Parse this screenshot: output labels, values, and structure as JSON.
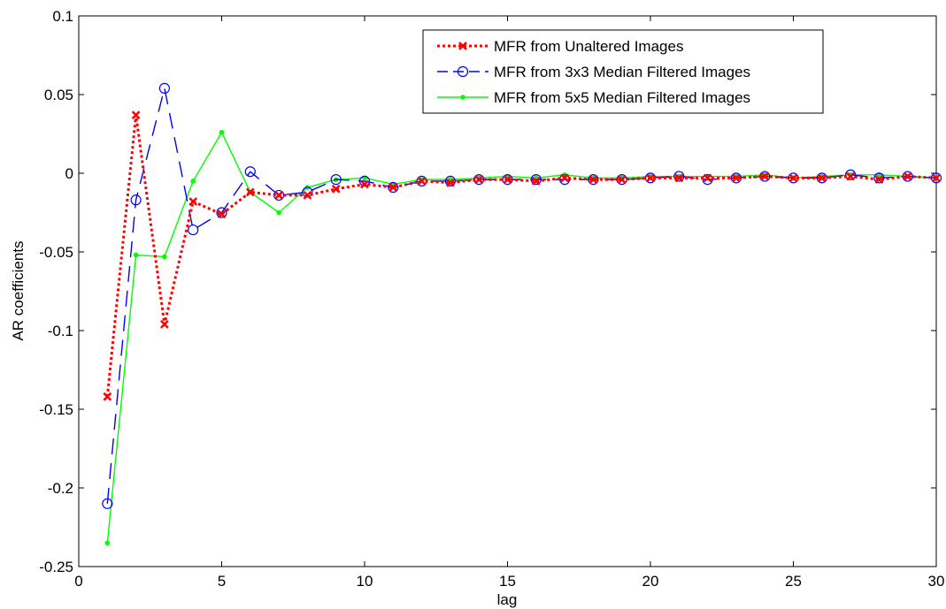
{
  "chart_data": {
    "type": "line",
    "title": "",
    "xlabel": "lag",
    "ylabel": "AR coefficients",
    "xlim": [
      0,
      30
    ],
    "ylim": [
      -0.25,
      0.1
    ],
    "xticks": [
      0,
      5,
      10,
      15,
      20,
      25,
      30
    ],
    "xtick_labels": [
      "0",
      "5",
      "10",
      "15",
      "20",
      "25",
      "30"
    ],
    "yticks": [
      0.1,
      0.05,
      0,
      -0.05,
      -0.1,
      -0.15,
      -0.2,
      -0.25
    ],
    "ytick_labels": [
      "0.1",
      "0.05",
      "0",
      "-0.05",
      "-0.1",
      "-0.15",
      "-0.2",
      "-0.25"
    ],
    "grid": false,
    "legend_position": "top-right",
    "x": [
      1,
      2,
      3,
      4,
      5,
      6,
      7,
      8,
      9,
      10,
      11,
      12,
      13,
      14,
      15,
      16,
      17,
      18,
      19,
      20,
      21,
      22,
      23,
      24,
      25,
      26,
      27,
      28,
      29,
      30
    ],
    "series": [
      {
        "name": "MFR from Unaltered Images",
        "color": "#ff0000",
        "marker": "x",
        "line_style": "dotted",
        "values": [
          -0.142,
          0.037,
          -0.096,
          -0.018,
          -0.026,
          -0.012,
          -0.014,
          -0.014,
          -0.01,
          -0.007,
          -0.009,
          -0.005,
          -0.006,
          -0.004,
          -0.004,
          -0.005,
          -0.003,
          -0.004,
          -0.004,
          -0.003,
          -0.003,
          -0.003,
          -0.003,
          -0.002,
          -0.003,
          -0.003,
          -0.002,
          -0.004,
          -0.002,
          -0.003
        ]
      },
      {
        "name": "MFR from 3x3 Median Filtered  Images",
        "color": "#0000ff",
        "marker": "o",
        "line_style": "dashed",
        "values": [
          -0.21,
          -0.017,
          0.054,
          -0.036,
          -0.025,
          0.001,
          -0.014,
          -0.012,
          -0.004,
          -0.005,
          -0.009,
          -0.005,
          -0.005,
          -0.004,
          -0.004,
          -0.004,
          -0.004,
          -0.004,
          -0.004,
          -0.003,
          -0.002,
          -0.004,
          -0.003,
          -0.002,
          -0.003,
          -0.003,
          -0.001,
          -0.003,
          -0.002,
          -0.003
        ]
      },
      {
        "name": "MFR from 5x5 Median Filtered  Images",
        "color": "#00ff00",
        "marker": ".",
        "line_style": "solid",
        "values": [
          -0.235,
          -0.052,
          -0.053,
          -0.005,
          0.026,
          -0.012,
          -0.025,
          -0.009,
          -0.004,
          -0.003,
          -0.007,
          -0.004,
          -0.004,
          -0.003,
          -0.002,
          -0.003,
          -0.001,
          -0.003,
          -0.003,
          -0.002,
          -0.002,
          -0.002,
          -0.002,
          -0.001,
          -0.003,
          -0.002,
          -0.001,
          -0.001,
          -0.002,
          -0.003
        ]
      }
    ]
  }
}
